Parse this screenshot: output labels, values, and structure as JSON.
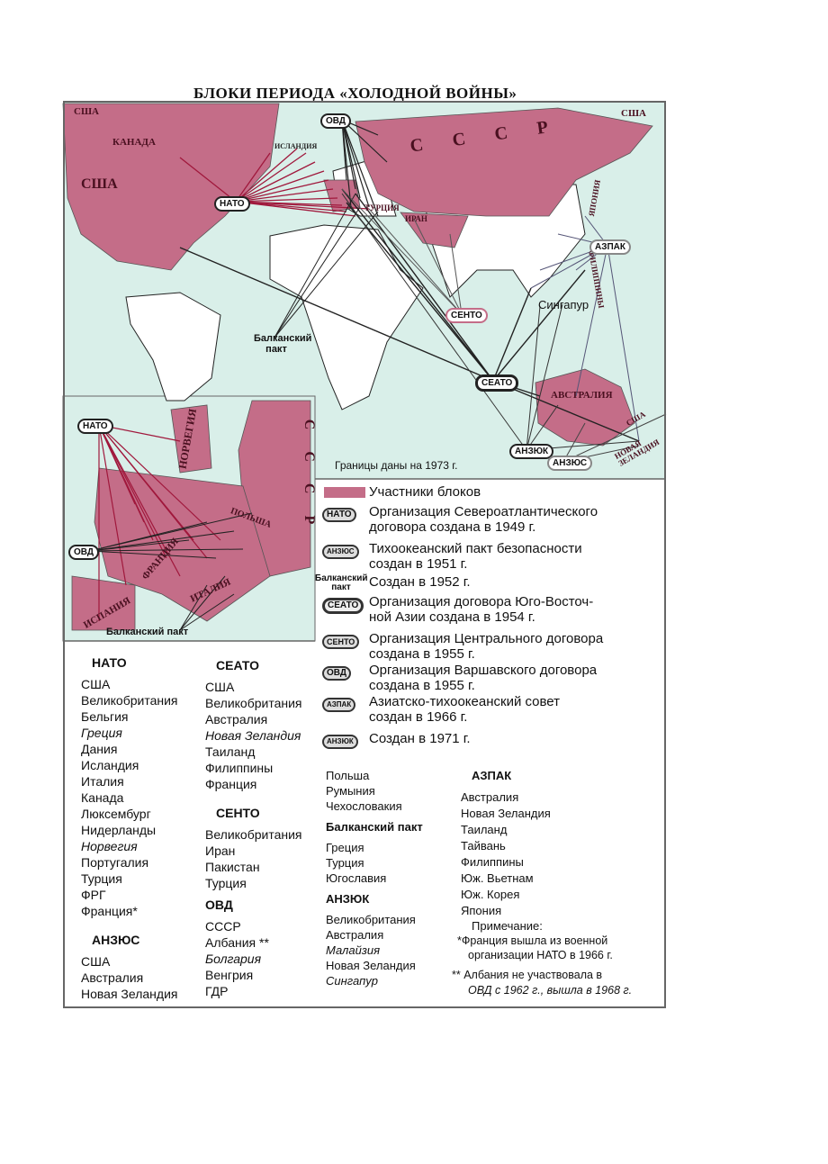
{
  "title": "БЛОКИ ПЕРИОДА «ХОЛОДНОЙ ВОЙНЫ»",
  "colors": {
    "members": "#c46d88",
    "sea": "#d9efe9",
    "land": "#ffffff",
    "nato_lines": "#a0183c",
    "lines": "#222222"
  },
  "map": {
    "labels": {
      "usa_nw": "США",
      "usa_ne": "США",
      "canada": "КАНАДА",
      "usa": "США",
      "ussr": "С С С Р",
      "iceland": "ИСЛАНДИЯ",
      "turkey": "ТУРЦИЯ",
      "iran": "ИРАН",
      "japan": "ЯПОНИЯ",
      "philippines": "ФИЛИППИНЫ",
      "singapore": "Сингапур",
      "australia": "АВСТРАЛИЯ",
      "usa_pacific": "США",
      "new_zealand": "НОВАЯ ЗЕЛАНДИЯ",
      "balkan": "Балканский пакт"
    },
    "badges": {
      "ovd": "ОВД",
      "nato": "НАТО",
      "sento": "СЕНТО",
      "seato": "СЕАТО",
      "azpak": "АЗПАК",
      "anzuk": "АНЗЮК",
      "anzus": "АНЗЮС"
    },
    "borders_note": "Границы даны на 1973 г."
  },
  "inset": {
    "labels": {
      "norway": "НОРВЕГИЯ",
      "ussr": "С С С Р",
      "poland": "ПОЛЬША",
      "france": "ФРАНЦИЯ",
      "italy": "ИТАЛИЯ",
      "spain": "ИСПАНИЯ",
      "balkan": "Балканский пакт"
    },
    "badges": {
      "nato": "НАТО",
      "ovd": "ОВД"
    }
  },
  "legend": {
    "members": "Участники блоков",
    "items": [
      {
        "badge": "НАТО",
        "l1": "Организация Североатлантического",
        "l2": "договора создана в 1949 г."
      },
      {
        "badge": "АНЗЮС",
        "l1": "Тихоокеанский пакт безопасности",
        "l2": "создан в 1951 г."
      },
      {
        "badge": "Балканский пакт",
        "l1": "Создан в 1952 г.",
        "l2": ""
      },
      {
        "badge": "СЕАТО",
        "l1": "Организация договора Юго-Восточ-",
        "l2": "ной Азии создана в 1954 г."
      },
      {
        "badge": "СЕНТО",
        "l1": "Организация Центрального договора",
        "l2": "создана в 1955 г."
      },
      {
        "badge": "ОВД",
        "l1": "Организация Варшавского договора",
        "l2": "создана в 1955 г."
      },
      {
        "badge": "АЗПАК",
        "l1": "Азиатско-тихоокеанский совет",
        "l2": "создан в 1966 г."
      },
      {
        "badge": "АНЗЮК",
        "l1": "Создан в 1971 г.",
        "l2": ""
      }
    ]
  },
  "lists": {
    "nato": {
      "title": "НАТО",
      "members": [
        "США",
        "Великобритания",
        "Бельгия",
        "Греция",
        "Дания",
        "Исландия",
        "Италия",
        "Канада",
        "Люксембург",
        "Нидерланды",
        "Норвегия",
        "Португалия",
        "Турция",
        "ФРГ",
        "Франция*"
      ]
    },
    "anzus": {
      "title": "АНЗЮС",
      "members": [
        "США",
        "Австралия",
        "Новая Зеландия"
      ]
    },
    "seato": {
      "title": "СЕАТО",
      "members": [
        "США",
        "Великобритания",
        "Австралия",
        "Новая Зеландия",
        "Таиланд",
        "Филиппины",
        "Франция"
      ]
    },
    "sento": {
      "title": "СЕНТО",
      "members": [
        "Великобритания",
        "Иран",
        "Пакистан",
        "Турция"
      ]
    },
    "ovd": {
      "title": "ОВД",
      "members": [
        "СССР",
        "Албания **",
        "Болгария",
        "Венгрия",
        "ГДР",
        "Польша",
        "Румыния",
        "Чехословакия"
      ]
    },
    "balkan": {
      "title": "Балканский пакт",
      "members": [
        "Греция",
        "Турция",
        "Югославия"
      ]
    },
    "anzuk": {
      "title": "АНЗЮК",
      "members": [
        "Великобритания",
        "Австралия",
        "Малайзия",
        "Новая Зеландия",
        "Сингапур"
      ]
    },
    "azpak": {
      "title": "АЗПАК",
      "members": [
        "Австралия",
        "Новая Зеландия",
        "Таиланд",
        "Тайвань",
        "Филиппины",
        "Юж. Вьетнам",
        "Юж. Корея",
        "Япония"
      ]
    }
  },
  "notes": {
    "title": "Примечание:",
    "n1a": "*Франция вышла из военной",
    "n1b": "организации НАТО в 1966 г.",
    "n2a": "** Албания не участвовала в",
    "n2b": "ОВД с 1962 г., вышла в 1968 г."
  }
}
